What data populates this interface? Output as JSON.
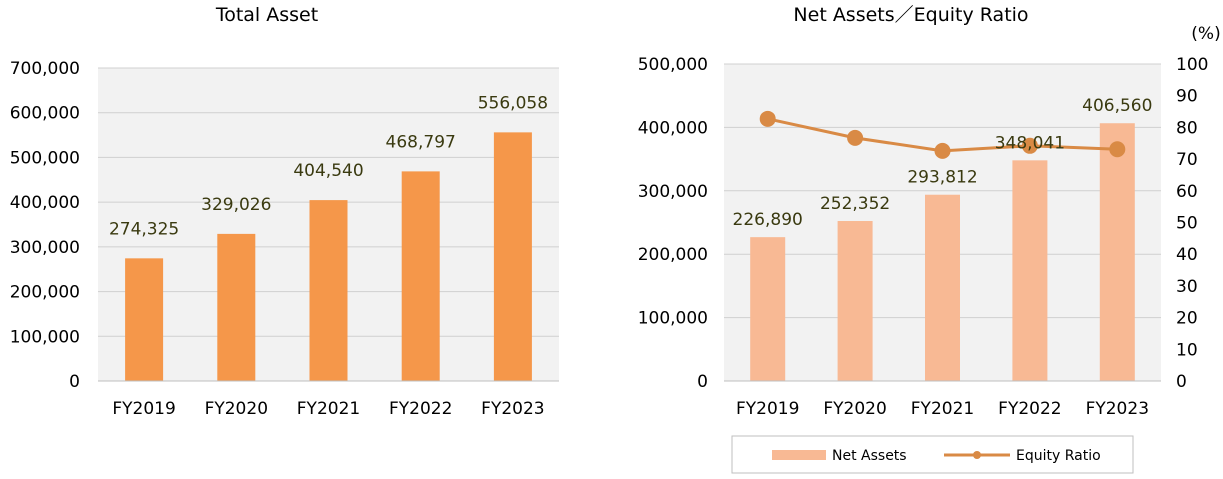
{
  "chart_data": [
    {
      "type": "bar",
      "title": "Total Asset",
      "categories": [
        "FY2019",
        "FY2020",
        "FY2021",
        "FY2022",
        "FY2023"
      ],
      "values": [
        274325,
        329026,
        404540,
        468797,
        556058
      ],
      "value_labels": [
        "274,325",
        "329,026",
        "404,540",
        "468,797",
        "556,058"
      ],
      "ylim": [
        0,
        700000
      ],
      "y_ticks": [
        "0",
        "100,000",
        "200,000",
        "300,000",
        "400,000",
        "500,000",
        "600,000",
        "700,000"
      ],
      "grid": true,
      "bar_color": "#f5974a",
      "plot_background": "#f2f2f2"
    },
    {
      "type": "bar",
      "title": "Net Assets／Equity Ratio",
      "categories": [
        "FY2019",
        "FY2020",
        "FY2021",
        "FY2022",
        "FY2023"
      ],
      "series": [
        {
          "name": "Net Assets",
          "type": "bar",
          "axis": "left",
          "values": [
            226890,
            252352,
            293812,
            348041,
            406560
          ],
          "value_labels": [
            "226,890",
            "252,352",
            "293,812",
            "348,041",
            "406,560"
          ],
          "color": "#f8b994"
        },
        {
          "name": "Equity Ratio",
          "type": "line",
          "axis": "right",
          "values": [
            82.7,
            76.7,
            72.6,
            74.2,
            73.1
          ],
          "color": "#d98a45"
        }
      ],
      "ylim": [
        0,
        500000
      ],
      "y_ticks": [
        "0",
        "100,000",
        "200,000",
        "300,000",
        "400,000",
        "500,000"
      ],
      "y2lim": [
        0,
        100
      ],
      "y2_ticks": [
        "0",
        "10",
        "20",
        "30",
        "40",
        "50",
        "60",
        "70",
        "80",
        "90",
        "100"
      ],
      "y2_unit": "(%)",
      "grid": true,
      "legend_position": "bottom",
      "plot_background": "#f2f2f2"
    }
  ]
}
